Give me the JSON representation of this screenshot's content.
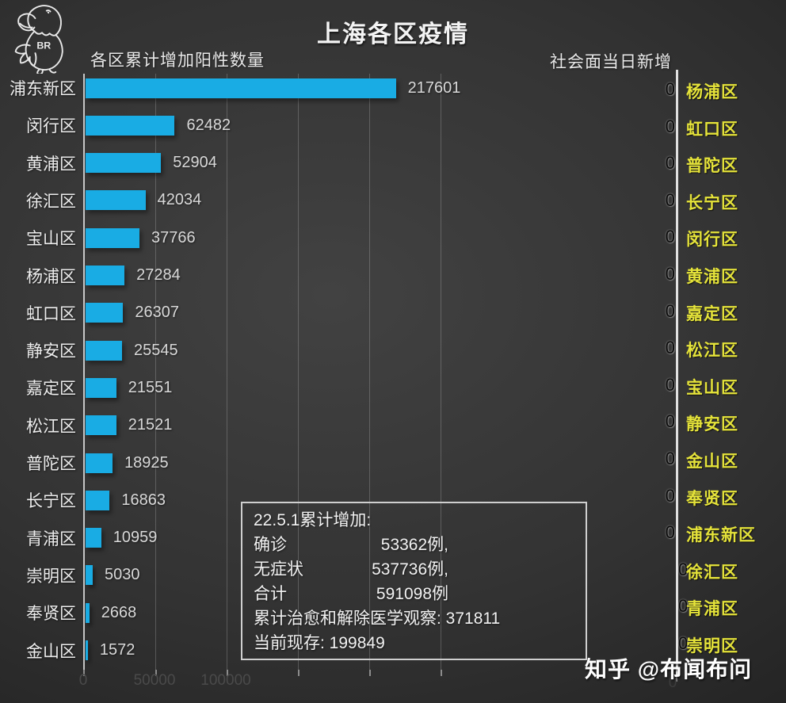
{
  "title": "上海各区疫情",
  "logo": {
    "text": "BR"
  },
  "left_chart": {
    "header": "各区累计增加阳性数量",
    "bar_color": "#19ace4",
    "rows": [
      {
        "name": "浦东新区",
        "value": 217601
      },
      {
        "name": "闵行区",
        "value": 62482
      },
      {
        "name": "黄浦区",
        "value": 52904
      },
      {
        "name": "徐汇区",
        "value": 42034
      },
      {
        "name": "宝山区",
        "value": 37766
      },
      {
        "name": "杨浦区",
        "value": 27284
      },
      {
        "name": "虹口区",
        "value": 26307
      },
      {
        "name": "静安区",
        "value": 25545
      },
      {
        "name": "嘉定区",
        "value": 21551
      },
      {
        "name": "松江区",
        "value": 21521
      },
      {
        "name": "普陀区",
        "value": 18925
      },
      {
        "name": "长宁区",
        "value": 16863
      },
      {
        "name": "青浦区",
        "value": 10959
      },
      {
        "name": "崇明区",
        "value": 5030
      },
      {
        "name": "奉贤区",
        "value": 2668
      },
      {
        "name": "金山区",
        "value": 1572
      }
    ],
    "x_ticks": [
      {
        "label": "0"
      },
      {
        "label": "50000"
      },
      {
        "label": "100000"
      }
    ]
  },
  "right_chart": {
    "header": "社会面当日新增",
    "name_color": "#e5e33a",
    "axis_zero": "0",
    "rows": [
      {
        "name": "杨浦区",
        "value": "0"
      },
      {
        "name": "虹口区",
        "value": "0"
      },
      {
        "name": "普陀区",
        "value": "0"
      },
      {
        "name": "长宁区",
        "value": "0"
      },
      {
        "name": "闵行区",
        "value": "0"
      },
      {
        "name": "黄浦区",
        "value": "0"
      },
      {
        "name": "嘉定区",
        "value": "0"
      },
      {
        "name": "松江区",
        "value": "0"
      },
      {
        "name": "宝山区",
        "value": "0"
      },
      {
        "name": "静安区",
        "value": "0"
      },
      {
        "name": "金山区",
        "value": "0"
      },
      {
        "name": "奉贤区",
        "value": "0"
      },
      {
        "name": "浦东新区",
        "value": "0"
      },
      {
        "name": "徐汇区",
        "value": "0",
        "shift": true
      },
      {
        "name": "青浦区",
        "value": "0",
        "shift": true
      },
      {
        "name": "崇明区",
        "value": "0",
        "shift": true
      }
    ]
  },
  "summary_box": {
    "line1": "22.5.1累计增加:",
    "rows": [
      {
        "label": "确诊",
        "value": "53362例,"
      },
      {
        "label": "无症状",
        "value": "537736例,"
      },
      {
        "label": "合计",
        "value": "591098例"
      }
    ],
    "line5": "累计治愈和解除医学观察: 371811",
    "line6": "当前现存: 199849"
  },
  "watermark": "知乎 @布闻布问",
  "chart_data": [
    {
      "type": "bar",
      "orientation": "horizontal",
      "title": "各区累计增加阳性数量",
      "categories": [
        "浦东新区",
        "闵行区",
        "黄浦区",
        "徐汇区",
        "宝山区",
        "杨浦区",
        "虹口区",
        "静安区",
        "嘉定区",
        "松江区",
        "普陀区",
        "长宁区",
        "青浦区",
        "崇明区",
        "奉贤区",
        "金山区"
      ],
      "values": [
        217601,
        62482,
        52904,
        42034,
        37766,
        27284,
        26307,
        25545,
        21551,
        21521,
        18925,
        16863,
        10959,
        5030,
        2668,
        1572
      ],
      "xlim": [
        0,
        250000
      ],
      "x_tick_interval": 50000,
      "visible_x_tick_labels": [
        0,
        50000,
        100000
      ],
      "bar_color": "#19ace4",
      "grid": "vertical-faint",
      "value_labels": "outside-end"
    },
    {
      "type": "bar",
      "orientation": "horizontal",
      "title": "社会面当日新增",
      "categories": [
        "杨浦区",
        "虹口区",
        "普陀区",
        "长宁区",
        "闵行区",
        "黄浦区",
        "嘉定区",
        "松江区",
        "宝山区",
        "静安区",
        "金山区",
        "奉贤区",
        "浦东新区",
        "徐汇区",
        "青浦区",
        "崇明区"
      ],
      "values": [
        0,
        0,
        0,
        0,
        0,
        0,
        0,
        0,
        0,
        0,
        0,
        0,
        0,
        0,
        0,
        0
      ],
      "category_label_color": "#e5e33a",
      "value_label_color": "#000000"
    }
  ]
}
